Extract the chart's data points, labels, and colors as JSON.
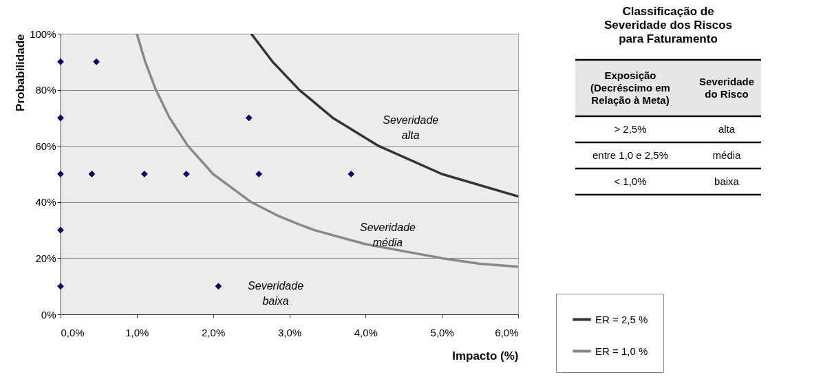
{
  "chart_data": [
    {
      "type": "scatter",
      "xlabel": "Impacto (%)",
      "ylabel": "Probabilidade",
      "xlim": [
        0,
        6
      ],
      "ylim": [
        0,
        100
      ],
      "xticks": [
        {
          "value": 0,
          "label": "0,0%"
        },
        {
          "value": 1,
          "label": "1,0%"
        },
        {
          "value": 2,
          "label": "2,0%"
        },
        {
          "value": 3,
          "label": "3,0%"
        },
        {
          "value": 4,
          "label": "4,0%"
        },
        {
          "value": 5,
          "label": "5,0%"
        },
        {
          "value": 6,
          "label": "6,0%"
        }
      ],
      "yticks": [
        {
          "value": 0,
          "label": "0%"
        },
        {
          "value": 20,
          "label": "20%"
        },
        {
          "value": 40,
          "label": "40%"
        },
        {
          "value": 60,
          "label": "60%"
        },
        {
          "value": 80,
          "label": "80%"
        },
        {
          "value": 100,
          "label": "100%"
        }
      ],
      "grid": "y",
      "legend": "bottom right",
      "marker": "diamond",
      "series": [
        {
          "type": "scatter",
          "color": "#000080",
          "x": [
            0,
            0.47,
            0,
            2.47,
            0,
            0.41,
            1.1,
            1.65,
            2.6,
            3.81,
            0,
            0,
            2.07
          ],
          "values": [
            90,
            90,
            70,
            70,
            50,
            50,
            50,
            50,
            50,
            50,
            30,
            10,
            10
          ]
        },
        {
          "type": "line",
          "name": "ER = 2,5 %",
          "color": "#333333",
          "line_style": "solid",
          "marker": "none",
          "x": [
            2.5,
            2.78,
            3.13,
            3.57,
            4.17,
            5.0,
            6.0
          ],
          "values": [
            100,
            90,
            80,
            70,
            60,
            50,
            42
          ]
        },
        {
          "type": "line",
          "name": "ER = 1,0 %",
          "color": "#888888",
          "line_style": "solid",
          "marker": "none",
          "x": [
            1.0,
            1.11,
            1.25,
            1.43,
            1.67,
            2.0,
            2.5,
            2.86,
            3.13,
            3.33,
            4.0,
            5.0,
            5.5,
            6.0
          ],
          "values": [
            100,
            90,
            80,
            70,
            60,
            50,
            40,
            35,
            32,
            30,
            25,
            20,
            18,
            17
          ]
        }
      ],
      "annotations": [
        "Severidade\nalta",
        "Severidade\nmédia",
        "Severidade\nbaixa"
      ]
    },
    {
      "type": "other",
      "title": "Classificação de Severidade dos Riscos para Faturamento",
      "annotations": [
        "Exposição\n(Decréscimo em\nRelação à Meta)",
        "Severidade\ndo Risco",
        "> 2,5%",
        "alta",
        "entre 1,0 e 2,5%",
        "média",
        "< 1,0%",
        "baixa"
      ]
    }
  ]
}
